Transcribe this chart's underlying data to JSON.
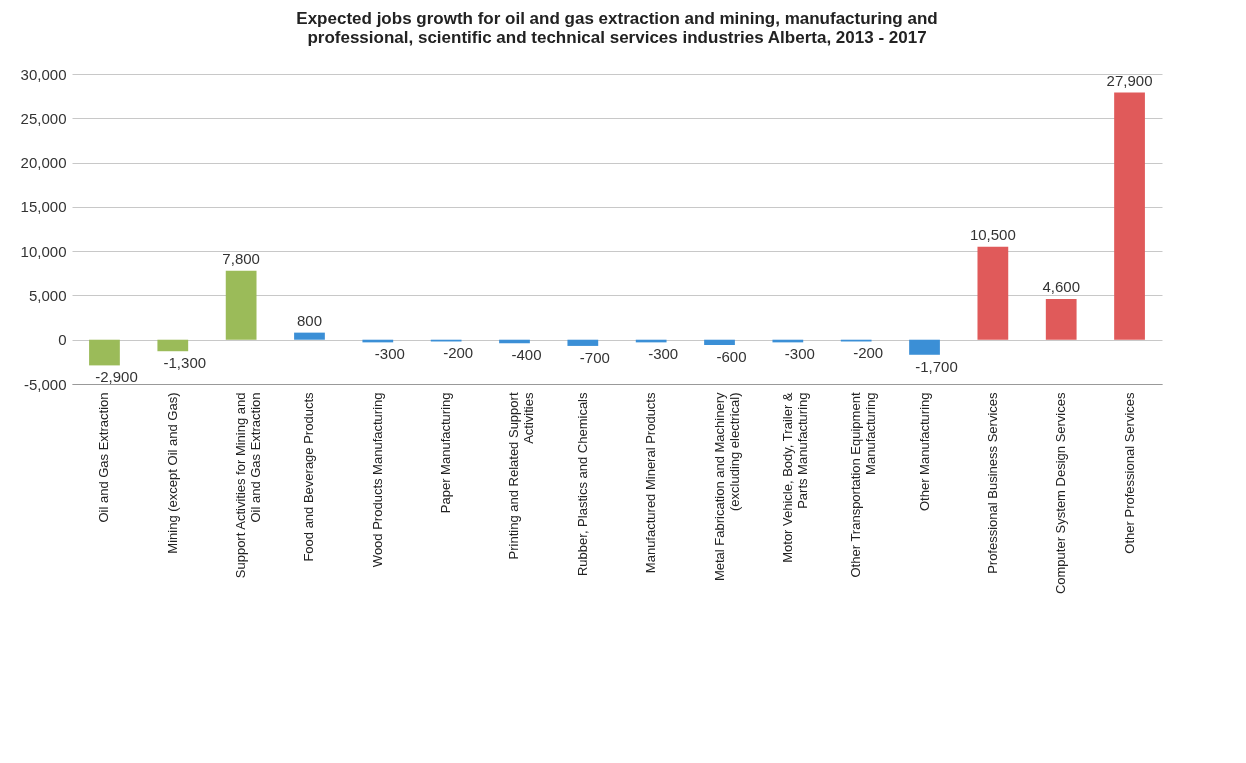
{
  "chart_data": {
    "type": "bar",
    "title": "Expected  jobs growth for oil and gas extraction and mining, manufacturing and professional, scientific and technical services industries Alberta, 2013 - 2017",
    "categories": [
      "Oil and Gas Extraction",
      "Mining (except Oil and Gas)",
      "Support Activities for Mining and Oil and Gas Extraction",
      "Food and Beverage Products",
      "Wood Products Manufacturing",
      "Paper Manufacturing",
      "Printing and Related Support Activities",
      "Rubber, Plastics and Chemicals",
      "Manufactured Mineral Products",
      "Metal Fabrication and Machinery (excluding electrical)",
      "Motor Vehicle, Body, Trailer & Parts Manufacturing",
      "Other Transportation Equipment Manufacturing",
      "Other Manufacturing",
      "Professional Business Services",
      "Computer System Design Services",
      "Other Professional Services"
    ],
    "values": [
      -2900,
      -1300,
      7800,
      800,
      -300,
      -200,
      -400,
      -700,
      -300,
      -600,
      -300,
      -200,
      -1700,
      10500,
      4600,
      27900
    ],
    "value_labels": [
      "-2,900",
      "-1,300",
      "7,800",
      "800",
      "-300",
      "-200",
      "-400",
      "-700",
      "-300",
      "-600",
      "-300",
      "-200",
      "-1,700",
      "10,500",
      "4,600",
      "27,900"
    ],
    "colors": [
      "#9bbb59",
      "#9bbb59",
      "#9bbb59",
      "#3b8fd6",
      "#3b8fd6",
      "#3b8fd6",
      "#3b8fd6",
      "#3b8fd6",
      "#3b8fd6",
      "#3b8fd6",
      "#3b8fd6",
      "#3b8fd6",
      "#3b8fd6",
      "#e05a5a",
      "#e05a5a",
      "#e05a5a"
    ],
    "ylim": [
      -5000,
      30000
    ],
    "yticks": [
      {
        "value": -5000,
        "label": "-5,000"
      },
      {
        "value": 0,
        "label": "0"
      },
      {
        "value": 5000,
        "label": "5,000"
      },
      {
        "value": 10000,
        "label": "10,000"
      },
      {
        "value": 15000,
        "label": "15,000"
      },
      {
        "value": 20000,
        "label": "20,000"
      },
      {
        "value": 25000,
        "label": "25,000"
      },
      {
        "value": 30000,
        "label": "30,000"
      }
    ],
    "grid": "y"
  }
}
